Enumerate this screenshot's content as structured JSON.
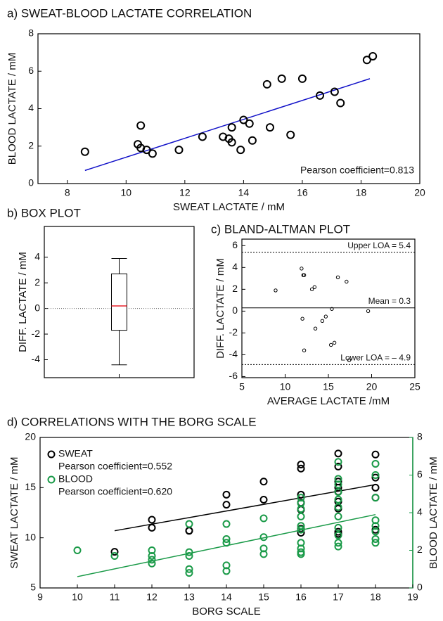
{
  "chart_data": [
    {
      "type": "scatter",
      "title": "a) SWEAT-BLOOD LACTATE CORRELATION",
      "xlabel": "SWEAT LACTATE / mM",
      "ylabel": "BLOOD LACTATE / mM",
      "xlim": [
        7,
        20
      ],
      "xticks": [
        8,
        10,
        12,
        14,
        16,
        18,
        20
      ],
      "ylim": [
        0,
        8
      ],
      "yticks": [
        0,
        2,
        4,
        6,
        8
      ],
      "series": [
        {
          "color": "#000000",
          "x": [
            8.6,
            10.4,
            10.5,
            10.5,
            10.7,
            10.9,
            11.8,
            12.6,
            13.3,
            13.5,
            13.6,
            13.6,
            13.9,
            14.0,
            14.2,
            14.3,
            14.8,
            14.9,
            15.3,
            15.6,
            16.0,
            16.6,
            17.1,
            17.3,
            18.2,
            18.4
          ],
          "values": [
            1.7,
            2.1,
            3.1,
            1.9,
            1.8,
            1.6,
            1.8,
            2.5,
            2.5,
            2.4,
            2.2,
            3.0,
            1.8,
            3.4,
            3.2,
            2.3,
            5.3,
            3.0,
            5.6,
            2.6,
            5.6,
            4.7,
            4.9,
            4.3,
            6.6,
            6.8
          ],
          "fit": {
            "x": [
              8.6,
              18.3
            ],
            "y": [
              0.7,
              5.6
            ]
          },
          "fit_color": "#1010c8",
          "annotation": "Pearson coefficient=0.813"
        }
      ]
    },
    {
      "type": "box",
      "title": "b) BOX PLOT",
      "ylabel": "DIFF. LACTATE / mM",
      "ylim": [
        -5.4,
        6.4
      ],
      "yticks": [
        -4,
        -2,
        0,
        2,
        4
      ],
      "box": {
        "min": -4.4,
        "q1": -1.7,
        "median": 0.2,
        "q3": 2.7,
        "max": 3.9
      },
      "median_color": "#e8202a",
      "reference_line": 0
    },
    {
      "type": "scatter",
      "title": "c) BLAND-ALTMAN PLOT",
      "xlabel": "AVERAGE LACTATE /mM",
      "ylabel": "DIFF. LACTATE / mM",
      "xlim": [
        5,
        25
      ],
      "xticks": [
        5,
        10,
        15,
        20,
        25
      ],
      "ylim": [
        -6.1,
        6.6
      ],
      "yticks": [
        -6,
        -4,
        -2,
        0,
        2,
        4,
        6
      ],
      "series": [
        {
          "color": "#000000",
          "x": [
            8.9,
            11.9,
            12.1,
            12.2,
            13.1,
            13.4,
            16.1,
            17.1,
            15.4,
            19.6,
            12.0,
            14.3,
            14.7,
            13.5,
            12.2,
            15.3,
            15.7,
            17.4
          ],
          "values": [
            1.9,
            3.9,
            3.3,
            3.3,
            2.0,
            2.2,
            3.1,
            2.7,
            0.2,
            0.0,
            -0.7,
            -0.9,
            -0.5,
            -1.6,
            -3.6,
            -3.1,
            -2.9,
            -4.5
          ]
        }
      ],
      "lines": [
        {
          "value": 5.4,
          "label": "Upper LOA = 5.4",
          "style": "dotted"
        },
        {
          "value": 0.3,
          "label": "Mean = 0.3",
          "style": "solid"
        },
        {
          "value": -4.9,
          "label": "Lower LOA = – 4.9",
          "style": "dotted"
        }
      ],
      "line_label_color": "#e8202a"
    },
    {
      "type": "scatter",
      "title": "d) CORRELATIONS WITH THE BORG SCALE",
      "xlabel": "BORG SCALE",
      "ylabel": "SWEAT LACTATE / mM",
      "y2label": "BLOOD LACTATE / mM",
      "xlim": [
        9,
        19
      ],
      "xticks": [
        9,
        10,
        11,
        12,
        13,
        14,
        15,
        16,
        17,
        18,
        19
      ],
      "ylim": [
        5,
        20
      ],
      "yticks": [
        5,
        10,
        15,
        20
      ],
      "y2lim": [
        0,
        8
      ],
      "y2ticks": [
        0,
        2,
        4,
        6,
        8
      ],
      "series": [
        {
          "name": "SWEAT",
          "color": "#000000",
          "annotation": "Pearson coefficient=0.552",
          "x": [
            11,
            12,
            12,
            13,
            13,
            14,
            14,
            15,
            15,
            16,
            16,
            16,
            16,
            16,
            16,
            16,
            17,
            17,
            17,
            17,
            17,
            17,
            17,
            17,
            17,
            18,
            18,
            18,
            18,
            18
          ],
          "values": [
            8.6,
            11.8,
            11.0,
            10.7,
            10.7,
            14.3,
            13.3,
            15.6,
            13.8,
            17.3,
            16.9,
            14.3,
            13.5,
            12.8,
            10.9,
            10.5,
            18.4,
            17.1,
            15.6,
            15.0,
            14.6,
            13.6,
            12.9,
            10.6,
            10.4,
            18.3,
            16.0,
            15.0,
            14.0,
            10.8
          ],
          "fit": {
            "x": [
              11,
              18
            ],
            "y": [
              10.7,
              15.3
            ]
          }
        },
        {
          "name": "BLOOD",
          "color": "#1a9a48",
          "axis": "y2",
          "annotation": "Pearson coefficient=0.620",
          "x": [
            10,
            11,
            12,
            12,
            12,
            12,
            13,
            13,
            13,
            13,
            13,
            14,
            14,
            14,
            14,
            14,
            15,
            15,
            15,
            15,
            16,
            16,
            16,
            16,
            16,
            16,
            16,
            16,
            16,
            16,
            17,
            17,
            17,
            17,
            17,
            17,
            17,
            17,
            17,
            17,
            17,
            18,
            18,
            18,
            18,
            18,
            18,
            18,
            18
          ],
          "values": [
            2.0,
            1.7,
            2.0,
            1.7,
            1.5,
            1.3,
            3.4,
            1.9,
            1.7,
            1.0,
            0.8,
            3.4,
            2.6,
            2.4,
            1.2,
            0.9,
            3.7,
            2.7,
            2.1,
            1.8,
            4.8,
            4.5,
            4.2,
            3.8,
            3.3,
            3.1,
            2.4,
            2.1,
            1.9,
            1.8,
            6.7,
            5.8,
            5.5,
            5.1,
            4.7,
            4.3,
            3.8,
            3.2,
            2.8,
            2.4,
            2.2,
            6.6,
            6.0,
            4.8,
            3.6,
            3.3,
            3.0,
            2.6,
            2.4
          ],
          "fit": {
            "x": [
              10,
              18
            ],
            "y": [
              0.6,
              3.9
            ]
          }
        }
      ]
    }
  ]
}
